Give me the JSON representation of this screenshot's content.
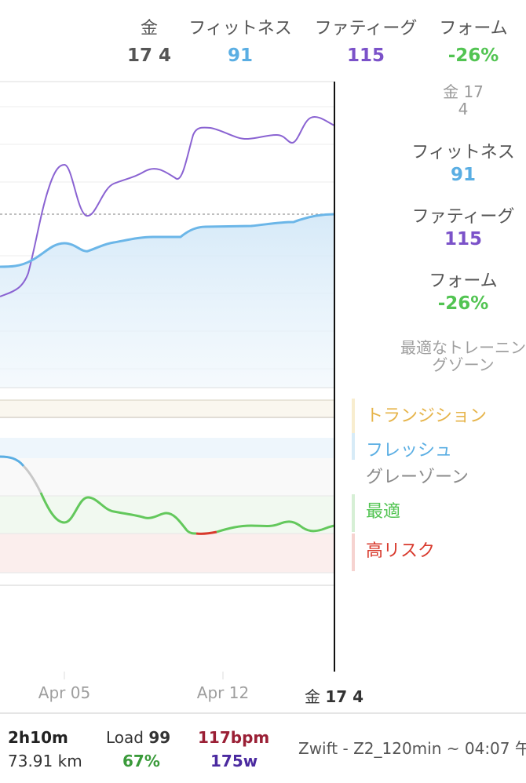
{
  "header": {
    "columns": [
      {
        "label": "金",
        "value": "17 4",
        "color": "#555555"
      },
      {
        "label": "フィットネス",
        "value": "91",
        "color": "#5aaee3"
      },
      {
        "label": "ファティーグ",
        "value": "115",
        "color": "#7b52c9"
      },
      {
        "label": "フォーム",
        "value": "-26%",
        "color": "#52c452"
      }
    ]
  },
  "sidebar": {
    "date": "金 17\n4",
    "fitness_label": "フィットネス",
    "fitness_value": "91",
    "fatigue_label": "ファティーグ",
    "fatigue_value": "115",
    "form_label": "フォーム",
    "form_value": "-26%",
    "zone": "最適なトレーニン\nグゾーン"
  },
  "legend": [
    {
      "label": "トランジション",
      "color": "#e6b44a",
      "bar": "#f8edcf"
    },
    {
      "label": "フレッシュ",
      "color": "#5aaee3",
      "bar": "#d7ebf7"
    },
    {
      "label": "グレーゾーン",
      "color": "#8a8a8a",
      "bar": "#ffffff"
    },
    {
      "label": "最適",
      "color": "#52c452",
      "bar": "#d6efd5"
    },
    {
      "label": "高リスク",
      "color": "#d8392c",
      "bar": "#f6d3d0"
    }
  ],
  "x_axis": {
    "ticks": [
      "Apr 05",
      "Apr 12"
    ],
    "cursor_label_prefix": "金",
    "cursor_label_value": "17 4"
  },
  "chart_data": {
    "type": "line",
    "series": [
      {
        "name": "フィットネス",
        "color": "#5aaee3"
      },
      {
        "name": "ファティーグ",
        "color": "#7b52c9"
      },
      {
        "name": "フォーム",
        "color": "#52c452"
      }
    ]
  },
  "footer": {
    "duration": "2h10m",
    "distance": "73.91 km",
    "load_label": "Load",
    "load_value": "99",
    "load_pct": "67%",
    "hr": "117bpm",
    "power": "175w",
    "activity": "Zwift - Z2_120min ~ 04:07 午"
  }
}
